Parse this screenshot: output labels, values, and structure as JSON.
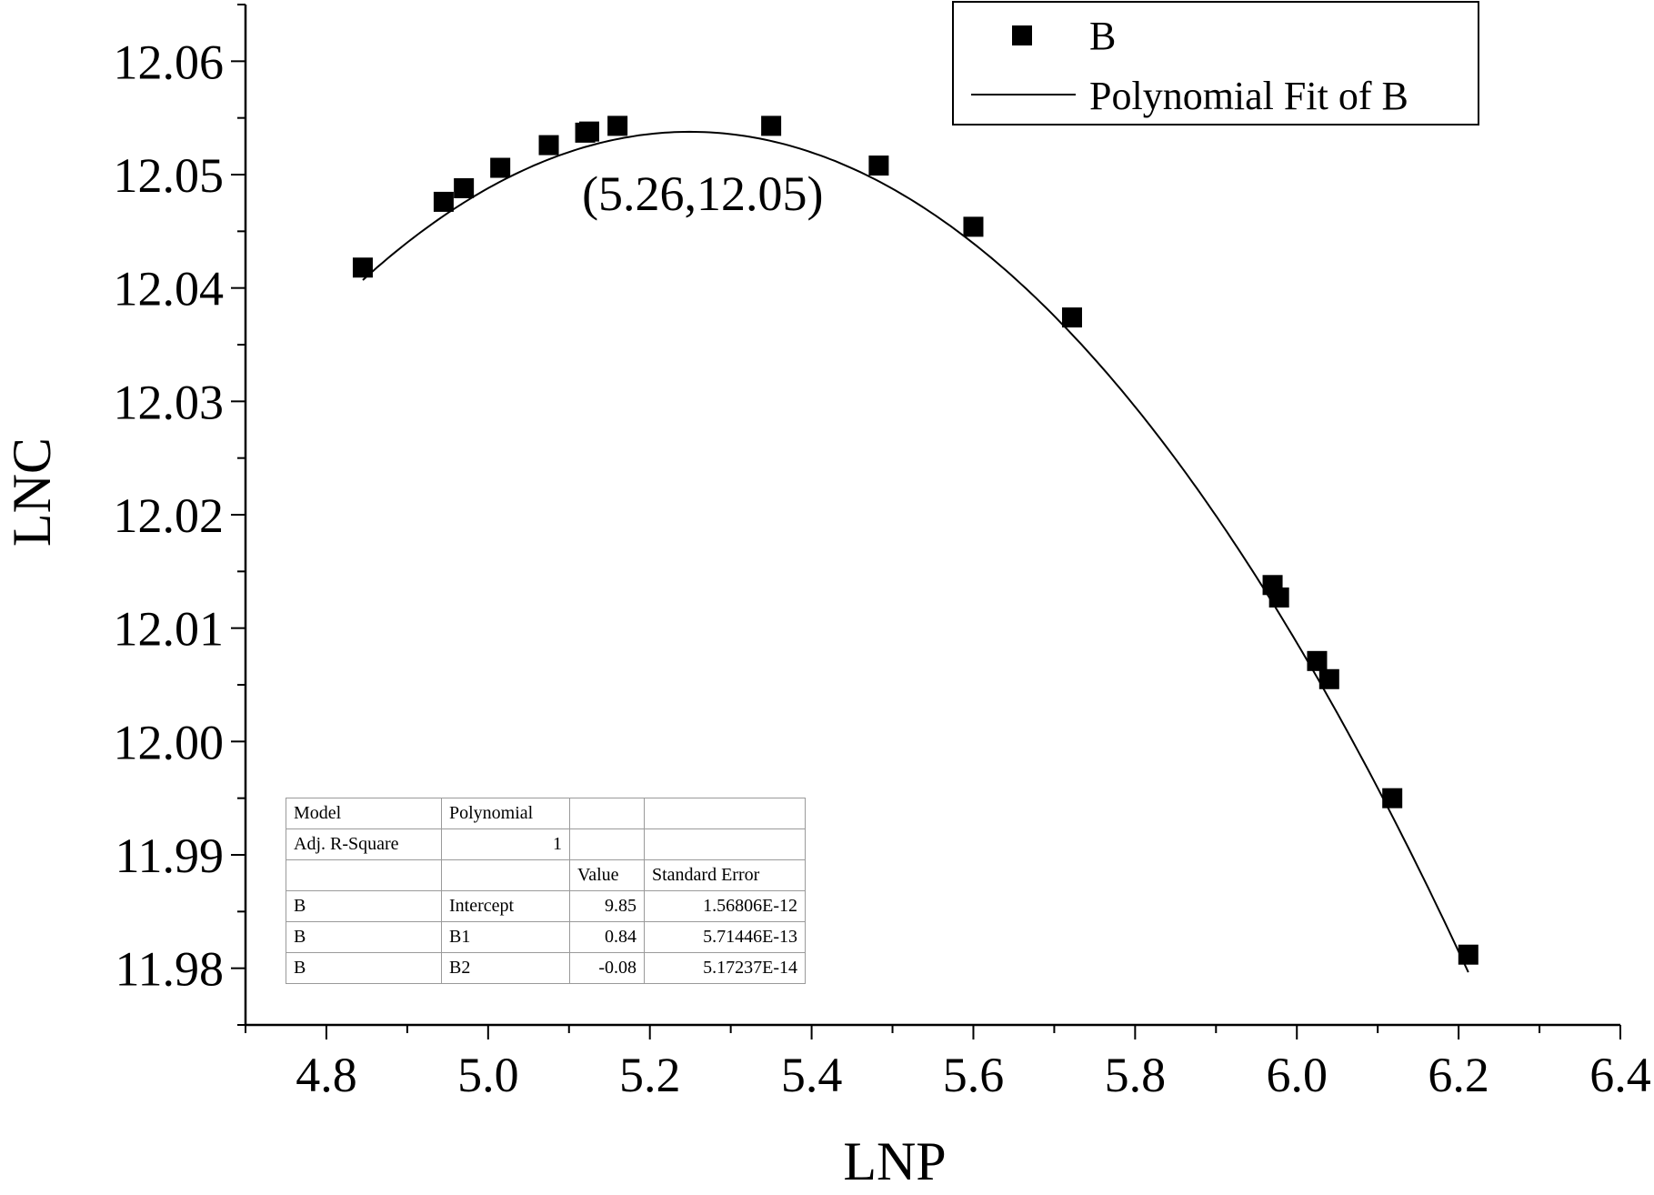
{
  "chart_data": {
    "type": "scatter",
    "xlabel": "LNP",
    "ylabel": "LNC",
    "xlim": [
      4.7,
      6.4
    ],
    "ylim": [
      11.975,
      12.065
    ],
    "xticks": [
      "4.8",
      "5.0",
      "5.2",
      "5.4",
      "5.6",
      "5.8",
      "6.0",
      "6.2",
      "6.4"
    ],
    "yticks": [
      "11.98",
      "11.99",
      "12.00",
      "12.01",
      "12.02",
      "12.03",
      "12.04",
      "12.05",
      "12.06"
    ],
    "series": [
      {
        "name": "B",
        "marker": "square",
        "x": [
          4.845,
          4.945,
          4.97,
          5.015,
          5.075,
          5.12,
          5.125,
          5.16,
          5.35,
          5.483,
          5.6,
          5.722,
          5.97,
          5.978,
          6.025,
          6.04,
          6.118,
          6.212
        ],
        "y": [
          12.0418,
          12.0476,
          12.0488,
          12.0506,
          12.0526,
          12.0537,
          12.0538,
          12.0543,
          12.0543,
          12.0508,
          12.0454,
          12.0374,
          12.0138,
          12.0127,
          12.0071,
          12.0055,
          11.995,
          11.9812
        ]
      },
      {
        "name": "Polynomial Fit of B",
        "type": "line",
        "x_range": [
          4.845,
          6.212
        ],
        "coefficients": {
          "B2": -0.08,
          "B1": 0.8399,
          "Intercept": 9.8493
        }
      }
    ],
    "annotations": [
      {
        "text": "(5.26,12.05)",
        "x": 5.26,
        "y": 12.0525
      }
    ],
    "legend": {
      "placement": "top-right",
      "entries": [
        {
          "label": "B",
          "marker": "square"
        },
        {
          "label": "Polynomial Fit of B",
          "marker": "line"
        }
      ]
    },
    "grid": false,
    "fit_table": {
      "rows": [
        [
          "Model",
          "Polynomial",
          "",
          ""
        ],
        [
          "Adj. R-Square",
          "1",
          "",
          ""
        ],
        [
          "",
          "",
          "Value",
          "Standard Error"
        ],
        [
          "B",
          "Intercept",
          "9.85",
          "1.56806E-12"
        ],
        [
          "B",
          "B1",
          "0.84",
          "5.71446E-13"
        ],
        [
          "B",
          "B2",
          "-0.08",
          "5.17237E-14"
        ]
      ]
    }
  }
}
